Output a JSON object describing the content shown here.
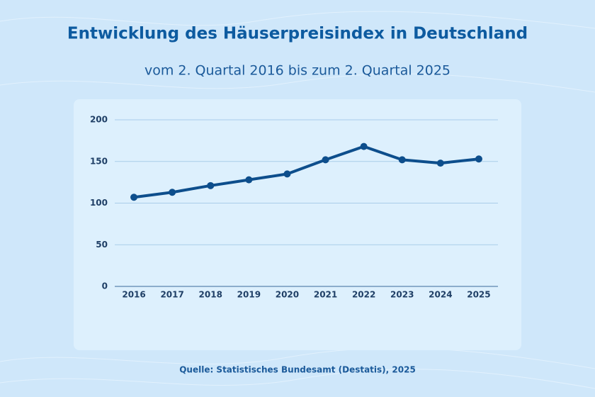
{
  "chart_data": {
    "type": "line",
    "title": "Entwicklung des Häuserpreisindex in Deutschland",
    "subtitle": "vom 2. Quartal 2016 bis zum 2. Quartal 2025",
    "source": "Quelle: Statistisches Bundesamt (Destatis), 2025",
    "categories": [
      "2016",
      "2017",
      "2018",
      "2019",
      "2020",
      "2021",
      "2022",
      "2023",
      "2024",
      "2025"
    ],
    "values": [
      107,
      113,
      121,
      128,
      135,
      152,
      168,
      152,
      148,
      153
    ],
    "color": "#0d4e8c",
    "ylim": [
      0,
      200
    ],
    "yticks": [
      0,
      50,
      100,
      150,
      200
    ],
    "grid": true
  }
}
